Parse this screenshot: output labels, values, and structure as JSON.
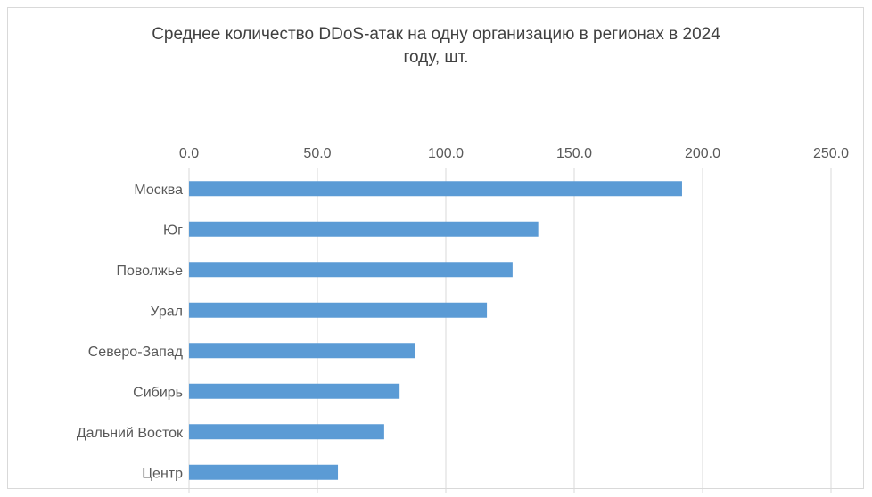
{
  "chart_data": {
    "type": "bar",
    "orientation": "horizontal",
    "title": "Среднее количество DDoS-атак на одну организацию в регионах в 2024\nгоду, шт.",
    "xlabel": "",
    "ylabel": "",
    "categories": [
      "Москва",
      "Юг",
      "Поволжье",
      "Урал",
      "Северо-Запад",
      "Сибирь",
      "Дальний Восток",
      "Центр"
    ],
    "values": [
      192,
      136,
      126,
      116,
      88,
      82,
      76,
      58
    ],
    "xlim": [
      0,
      250
    ],
    "ticks": [
      "0.0",
      "50.0",
      "100.0",
      "150.0",
      "200.0",
      "250.0"
    ],
    "tick_values": [
      0,
      50,
      100,
      150,
      200,
      250
    ],
    "axis_position": "top",
    "grid": true,
    "legend": "none",
    "bar_color": "#5b9bd5",
    "grid_color": "#d9d9d9"
  }
}
